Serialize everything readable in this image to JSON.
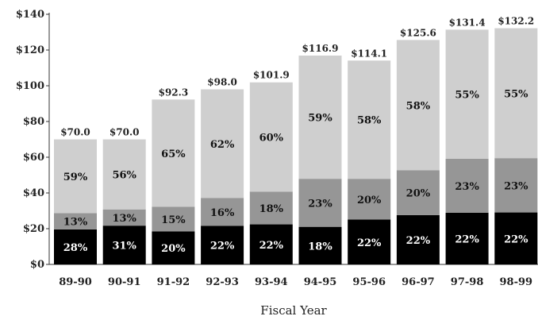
{
  "chart_data": {
    "type": "bar",
    "stacked": true,
    "xlabel": "Fiscal Year",
    "ylabel": "",
    "ylim": [
      0,
      140
    ],
    "y_ticks": [
      0,
      20,
      40,
      60,
      80,
      100,
      120,
      140
    ],
    "y_tick_labels": [
      "$0",
      "$20",
      "$40",
      "$60",
      "$80",
      "$100",
      "$120",
      "$140"
    ],
    "categories": [
      "89-90",
      "90-91",
      "91-92",
      "92-93",
      "93-94",
      "94-95",
      "95-96",
      "96-97",
      "97-98",
      "98-99"
    ],
    "totals": [
      70.0,
      70.0,
      92.3,
      98.0,
      101.9,
      116.9,
      114.1,
      125.6,
      131.4,
      132.2
    ],
    "total_labels": [
      "$70.0",
      "$70.0",
      "$92.3",
      "$98.0",
      "$101.9",
      "$116.9",
      "$114.1",
      "$125.6",
      "$131.4",
      "$132.2"
    ],
    "series": [
      {
        "color": "#000000",
        "text_color": "#ffffff",
        "percents": [
          28,
          31,
          20,
          22,
          22,
          18,
          22,
          22,
          22,
          22
        ],
        "labels": [
          "28%",
          "31%",
          "20%",
          "22%",
          "22%",
          "18%",
          "22%",
          "22%",
          "22%",
          "22%"
        ]
      },
      {
        "color": "#969696",
        "text_color": "#111111",
        "percents": [
          13,
          13,
          15,
          16,
          18,
          23,
          20,
          20,
          23,
          23
        ],
        "labels": [
          "13%",
          "13%",
          "15%",
          "16%",
          "18%",
          "23%",
          "20%",
          "20%",
          "23%",
          "23%"
        ]
      },
      {
        "color": "#cfcfcf",
        "text_color": "#111111",
        "percents": [
          59,
          56,
          65,
          62,
          60,
          59,
          58,
          58,
          55,
          55
        ],
        "labels": [
          "59%",
          "56%",
          "65%",
          "62%",
          "60%",
          "59%",
          "58%",
          "58%",
          "55%",
          "55%"
        ]
      }
    ],
    "grid": false,
    "legend": "none"
  }
}
